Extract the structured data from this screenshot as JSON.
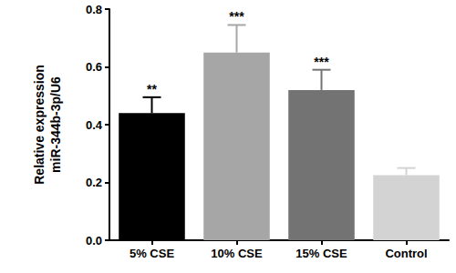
{
  "chart_data": {
    "type": "bar",
    "ylabel": "Relative expression\nmiR-344b-3p/U6",
    "categories": [
      "5% CSE",
      "10% CSE",
      "15% CSE",
      "Control"
    ],
    "values": [
      0.44,
      0.65,
      0.52,
      0.225
    ],
    "errors": [
      0.055,
      0.095,
      0.07,
      0.025
    ],
    "annotations": [
      "**",
      "***",
      "***",
      null
    ],
    "colors": [
      "#000000",
      "#a6a6a6",
      "#737373",
      "#d3d3d3"
    ],
    "ylim": [
      0,
      0.8
    ],
    "yticks": [
      {
        "value": 0,
        "label": "0.0"
      },
      0.2,
      0.4,
      0.6,
      0.8
    ],
    "grid": false
  }
}
